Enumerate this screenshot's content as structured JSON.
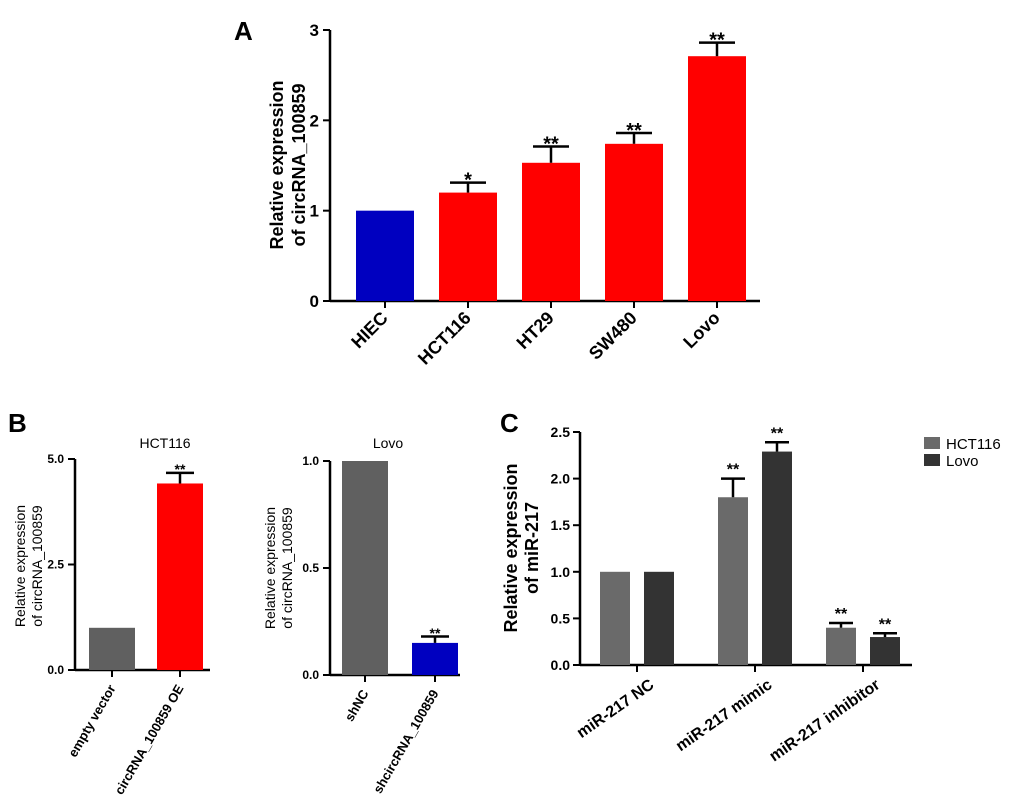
{
  "chart_data": [
    {
      "id": "A",
      "panel_label": "A",
      "type": "bar",
      "title": "",
      "xlabel": "",
      "ylabel": [
        "Relative expression",
        "of circRNA_100859"
      ],
      "ylim": [
        0,
        3
      ],
      "yticks": [
        "0",
        "1",
        "2",
        "3"
      ],
      "categories": [
        "HIEC",
        "HCT116",
        "HT29",
        "SW480",
        "Lovo"
      ],
      "values": [
        1.0,
        1.2,
        1.53,
        1.74,
        2.71
      ],
      "errors": [
        0,
        0.11,
        0.18,
        0.12,
        0.15
      ],
      "colors": [
        "#0000c0",
        "#ff0000",
        "#ff0000",
        "#ff0000",
        "#ff0000"
      ],
      "annotations": [
        "",
        "*",
        "**",
        "**",
        "**"
      ]
    },
    {
      "id": "B1",
      "panel_label": "B",
      "type": "bar",
      "title": "HCT116",
      "xlabel": "",
      "ylabel": [
        "Relative expression",
        "of circRNA_100859"
      ],
      "ylim": [
        0,
        5
      ],
      "yticks": [
        "0.0",
        "2.5",
        "5.0"
      ],
      "categories": [
        "empty vector",
        "circRNA_100859 OE"
      ],
      "values": [
        1.0,
        4.42
      ],
      "errors": [
        0,
        0.25
      ],
      "colors": [
        "#606060",
        "#ff0000"
      ],
      "annotations": [
        "",
        "**"
      ]
    },
    {
      "id": "B2",
      "panel_label": "",
      "type": "bar",
      "title": "Lovo",
      "xlabel": "",
      "ylabel": [
        "Relative expression",
        "of circRNA_100859"
      ],
      "ylim": [
        0,
        1
      ],
      "yticks": [
        "0.0",
        "0.5",
        "1.0"
      ],
      "categories": [
        "shNC",
        "shcircRNA_100859"
      ],
      "values": [
        1.0,
        0.15
      ],
      "errors": [
        0,
        0.03
      ],
      "colors": [
        "#606060",
        "#0000c0"
      ],
      "annotations": [
        "",
        "**"
      ]
    },
    {
      "id": "C",
      "panel_label": "C",
      "type": "bar",
      "title": "",
      "xlabel": "",
      "ylabel": [
        "Relative expression",
        "of miR-217"
      ],
      "ylim": [
        0,
        2.5
      ],
      "yticks": [
        "0.0",
        "0.5",
        "1.0",
        "1.5",
        "2.0",
        "2.5"
      ],
      "categories": [
        "miR-217  NC",
        "miR-217  mimic",
        "miR-217  inhibitor"
      ],
      "series": [
        {
          "name": "HCT116",
          "color": "#6a6a6a",
          "values": [
            1.0,
            1.8,
            0.4
          ],
          "errors": [
            0,
            0.2,
            0.05
          ],
          "annotations": [
            "",
            "**",
            "**"
          ]
        },
        {
          "name": "Lovo",
          "color": "#333333",
          "values": [
            1.0,
            2.29,
            0.3
          ],
          "errors": [
            0,
            0.1,
            0.04
          ],
          "annotations": [
            "",
            "**",
            "**"
          ]
        }
      ]
    }
  ]
}
